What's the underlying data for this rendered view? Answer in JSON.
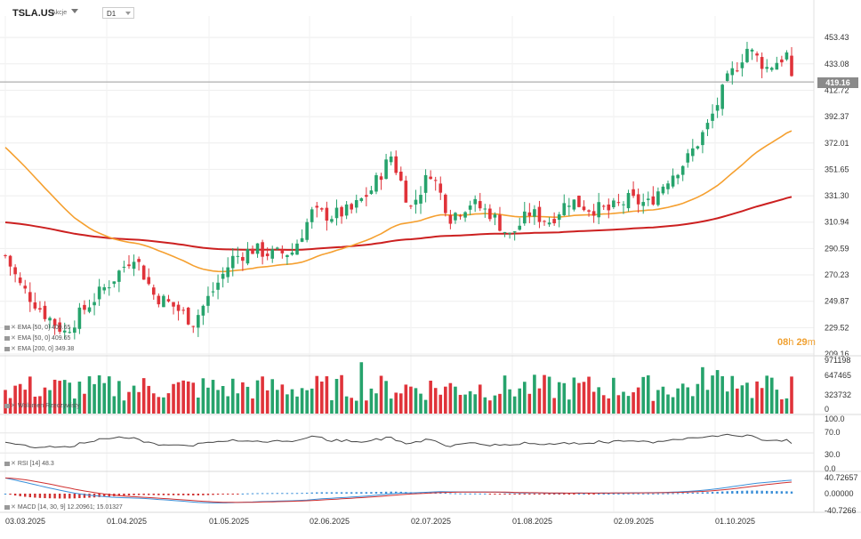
{
  "header": {
    "symbol": "TSLA.US",
    "symbol_type": "Akcje",
    "interval": "D1"
  },
  "price_badge": "419.16",
  "countdown": {
    "hours": "08",
    "h": "h",
    "minutes": "29",
    "m": "m"
  },
  "price_axis": [
    "453.43",
    "433.08",
    "412.72",
    "392.37",
    "372.01",
    "351.65",
    "331.30",
    "310.94",
    "290.59",
    "270.23",
    "249.87",
    "229.52",
    "209.16"
  ],
  "indicators": [
    {
      "label": "EMA [50, 0] 409.65"
    },
    {
      "label": "EMA [50, 0] 409.65"
    },
    {
      "label": "EMA [200, 0] 349.38"
    }
  ],
  "volume_panel": {
    "label": "Wolumen Rzeczywisty",
    "axis": [
      "971198",
      "647465",
      "323732",
      "0"
    ]
  },
  "rsi_panel": {
    "label": "RSI [14] 48.3",
    "axis": [
      "100.0",
      "70.0",
      "30.0",
      "0.0"
    ]
  },
  "macd_panel": {
    "label": "MACD [14, 30, 9] 12.20961; 15.01327",
    "axis": [
      "40.72657",
      "0.00000",
      "-40.7266"
    ]
  },
  "x_axis": [
    "03.03.2025",
    "01.04.2025",
    "01.05.2025",
    "02.06.2025",
    "02.07.2025",
    "01.08.2025",
    "02.09.2025",
    "01.10.2025"
  ],
  "colors": {
    "up": "#26a36c",
    "down": "#e0333a",
    "ema50": "#f5a030",
    "ema200": "#cc2020",
    "rsi": "#444444",
    "macd": "#3a8fd8",
    "signal": "#d03030"
  },
  "chart_data": {
    "type": "candlestick",
    "symbol": "TSLA.US",
    "ylim": [
      209.16,
      470
    ],
    "last_price": 419.16,
    "ema_labels": [
      "EMA [50, 0] 409.65",
      "EMA [200, 0] 349.38"
    ],
    "ema50_last": 409.65,
    "ema200_last": 349.38,
    "rsi_last": 48.3,
    "macd_last": [
      12.20961,
      15.01327
    ],
    "x_ticks": [
      "03.03.2025",
      "01.04.2025",
      "01.05.2025",
      "02.06.2025",
      "02.07.2025",
      "01.08.2025",
      "02.09.2025",
      "01.10.2025"
    ]
  }
}
